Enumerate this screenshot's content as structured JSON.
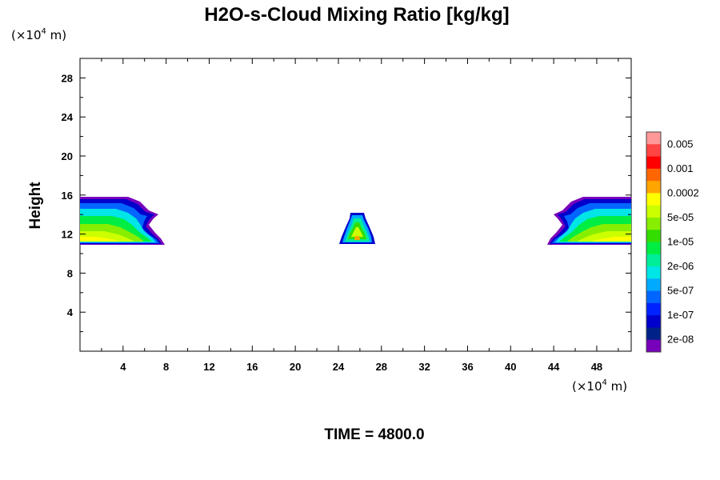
{
  "chart_data": {
    "type": "contour",
    "title": "H2O-s-Cloud Mixing Ratio [kg/kg]",
    "ylabel": "Height",
    "x_unit": {
      "prefix": "(×10",
      "exp": "4",
      "suffix": " m)"
    },
    "y_unit": {
      "prefix": "(×10",
      "exp": "4",
      "suffix": " m)"
    },
    "xlim": [
      0,
      51.2
    ],
    "ylim": [
      0,
      30
    ],
    "x_ticks": [
      "4",
      "8",
      "12",
      "16",
      "20",
      "24",
      "28",
      "32",
      "36",
      "40",
      "44",
      "48"
    ],
    "y_ticks": [
      "4",
      "8",
      "12",
      "16",
      "20",
      "24",
      "28"
    ],
    "colorbar": {
      "tick_labels": [
        "0.005",
        "0.001",
        "0.0002",
        "5e-05",
        "1e-05",
        "2e-06",
        "5e-07",
        "1e-07",
        "2e-08"
      ],
      "colors_top_to_bottom": [
        "#ff9999",
        "#ff4444",
        "#ff0000",
        "#ff6600",
        "#ffa500",
        "#ffff00",
        "#ccff00",
        "#88ee00",
        "#33dd00",
        "#00ee44",
        "#00ee99",
        "#00e5e5",
        "#00aaff",
        "#0066ff",
        "#0022ff",
        "#0000cc",
        "#002288",
        "#7700bb"
      ]
    },
    "footer": "TIME = 4800.0"
  }
}
